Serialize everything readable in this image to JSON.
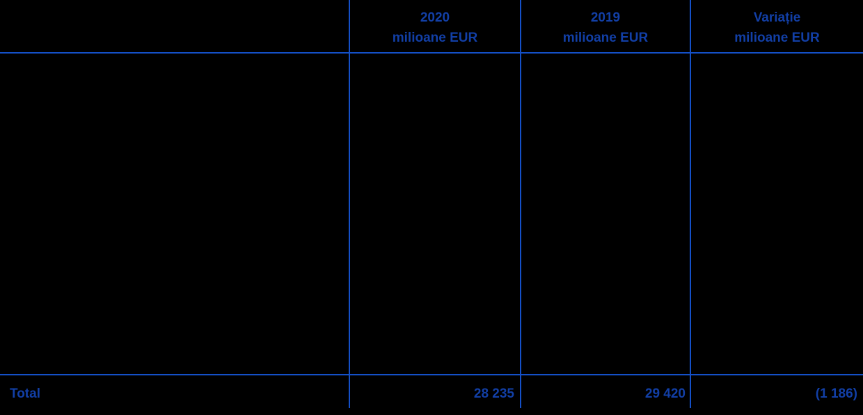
{
  "table": {
    "columns": [
      {
        "line1": "2020",
        "line2": "milioane EUR"
      },
      {
        "line1": "2019",
        "line2": "milioane EUR"
      },
      {
        "line1": "Variație",
        "line2": "milioane EUR"
      }
    ],
    "total_row": {
      "label": "Total",
      "values": [
        "28 235",
        "29 420",
        "(1 186)"
      ]
    }
  },
  "colors": {
    "line_blue": "#1450c8",
    "text_blue": "#123fa6",
    "background": "#000000"
  },
  "chart_data": {
    "type": "table",
    "columns": [
      "",
      "2020 milioane EUR",
      "2019 milioane EUR",
      "Variație milioane EUR"
    ],
    "rows": [
      [
        "Total",
        "28 235",
        "29 420",
        "(1 186)"
      ]
    ],
    "numeric_values": {
      "total_2020": 28235,
      "total_2019": 29420,
      "variatie": -1186
    }
  }
}
